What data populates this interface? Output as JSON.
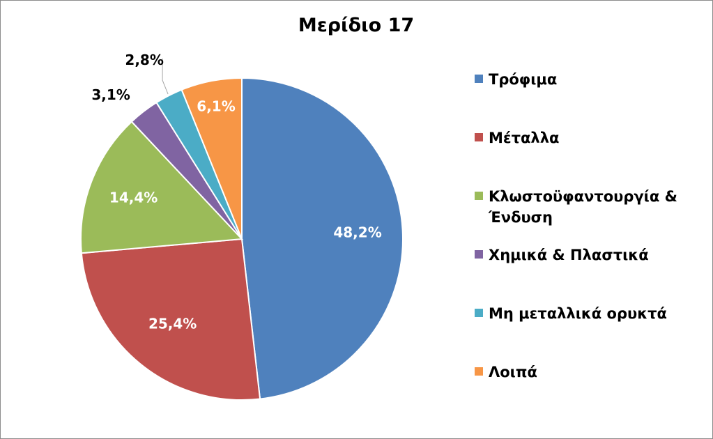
{
  "chart_data": {
    "type": "pie",
    "title": "Μερίδιο 17",
    "categories": [
      "Τρόφιμα",
      "Μέταλλα",
      "Κλωστοϋφαντουργία & Ένδυση",
      "Χημικά & Πλαστικά",
      "Μη μεταλλικά ορυκτά",
      "Λοιπά"
    ],
    "legend_lines": [
      [
        "Τρόφιμα"
      ],
      [
        "Μέταλλα"
      ],
      [
        "Κλωστοϋφαντουργία &",
        "Ένδυση"
      ],
      [
        "Χημικά & Πλαστικά"
      ],
      [
        "Μη μεταλλικά ορυκτά"
      ],
      [
        "Λοιπά"
      ]
    ],
    "values": [
      48.2,
      25.4,
      14.4,
      3.1,
      2.8,
      6.1
    ],
    "data_labels": [
      "48,2%",
      "25,4%",
      "14,4%",
      "3,1%",
      "2,8%",
      "6,1%"
    ],
    "colors": [
      "#4f81bd",
      "#c0504d",
      "#9bbb59",
      "#8064a2",
      "#4bacc6",
      "#f79646"
    ],
    "label_colors": [
      "#ffffff",
      "#ffffff",
      "#ffffff",
      "#000000",
      "#000000",
      "#ffffff"
    ],
    "legend_position": "right",
    "start_angle": "12 o'clock, clockwise"
  }
}
